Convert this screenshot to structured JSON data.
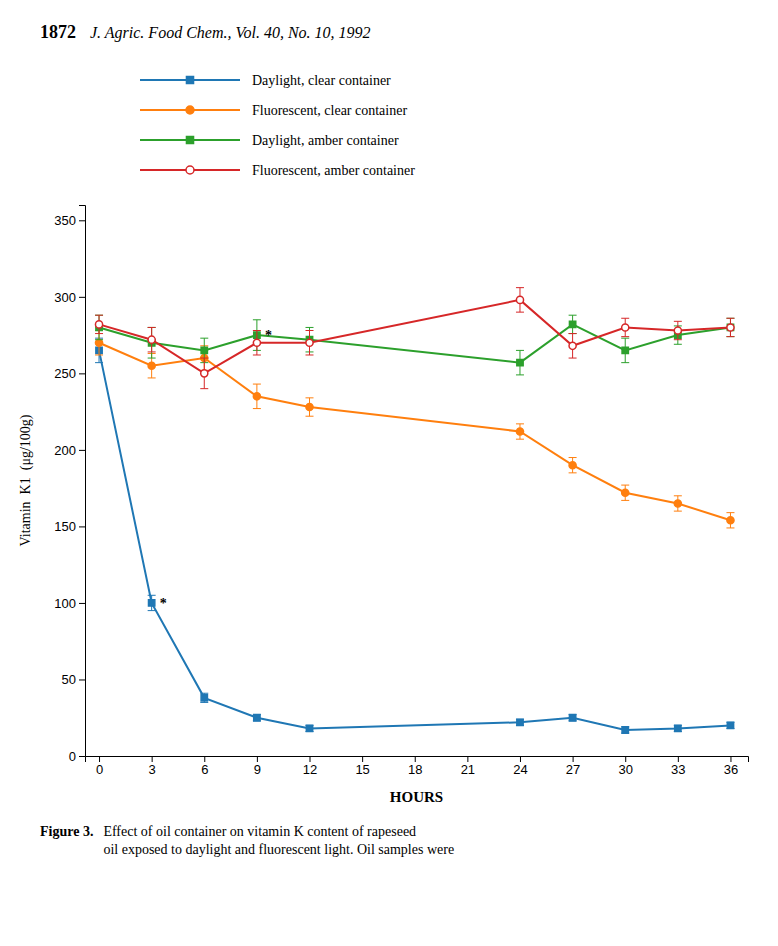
{
  "chart_data": {
    "type": "line",
    "title": "1872",
    "subtitle": "J. Agric. Food Chem., Vol. 40, No. 10, 1992",
    "x_label": "HOURS",
    "y_label": "Vitamin  K1  (μg/100g)",
    "caption": {
      "label": "Figure 3.",
      "text": "Effect of oil container on vitamin K content of rapeseed\noil exposed to daylight and fluorescent light.  Oil samples were"
    },
    "x": [
      0,
      3,
      6,
      9,
      12,
      24,
      27,
      30,
      33,
      36
    ],
    "xlim": [
      -0.8,
      37
    ],
    "xticks": [
      0,
      3,
      6,
      9,
      12,
      15,
      18,
      21,
      24,
      27,
      30,
      33,
      36
    ],
    "ylim": [
      0,
      360
    ],
    "yticks": [
      0,
      50,
      100,
      150,
      200,
      250,
      300,
      350
    ],
    "grid": false,
    "legend": "top",
    "series": [
      {
        "name": "Daylight, clear container",
        "marker": "square",
        "values": [
          265,
          100,
          38,
          25,
          18,
          22,
          25,
          17,
          18,
          20
        ],
        "errors": [
          8,
          5,
          3,
          2,
          2,
          2,
          2,
          2,
          2,
          2
        ]
      },
      {
        "name": "Fluorescent, clear container",
        "marker": "circle",
        "values": [
          270,
          255,
          260,
          235,
          228,
          212,
          190,
          172,
          165,
          154
        ],
        "errors": [
          8,
          8,
          8,
          8,
          6,
          5,
          5,
          5,
          5,
          5
        ]
      },
      {
        "name": "Daylight, amber container",
        "marker": "square",
        "values": [
          280,
          270,
          265,
          275,
          272,
          257,
          282,
          265,
          275,
          280
        ],
        "errors": [
          8,
          10,
          8,
          10,
          8,
          8,
          6,
          8,
          6,
          6
        ]
      },
      {
        "name": "Fluorescent, amber container",
        "marker": "circle-open",
        "values": [
          282,
          272,
          250,
          270,
          270,
          298,
          268,
          280,
          278,
          280
        ],
        "errors": [
          6,
          8,
          10,
          8,
          8,
          8,
          8,
          6,
          6,
          6
        ]
      }
    ],
    "annotations": [
      {
        "text": "*",
        "x": 3,
        "y": 100
      },
      {
        "text": "*",
        "x": 9,
        "y": 275
      }
    ]
  }
}
